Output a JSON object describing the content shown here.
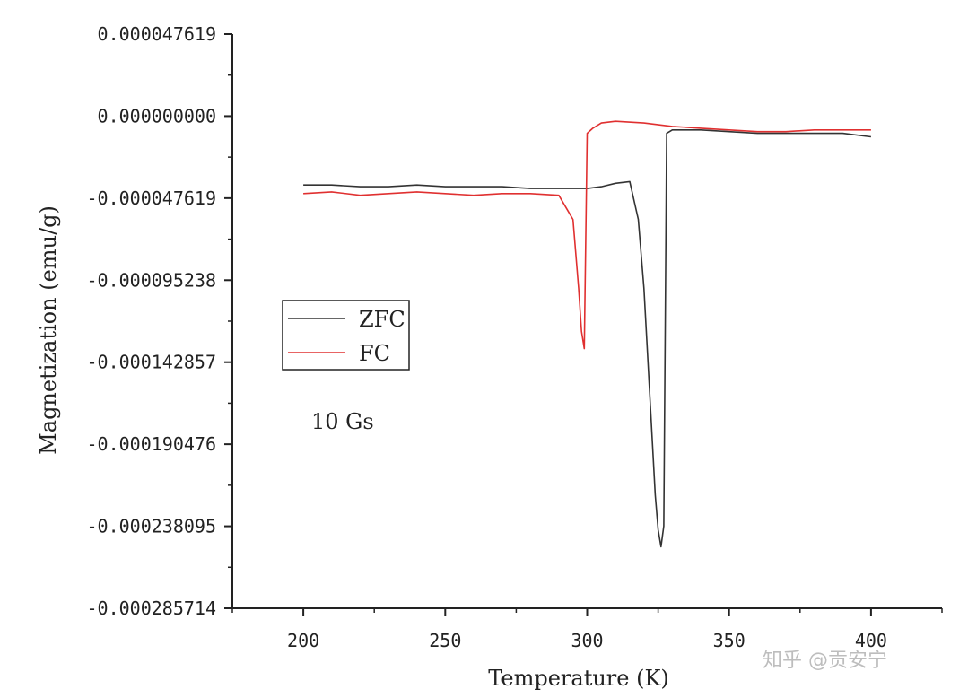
{
  "watermark": "知乎 @贡安宁",
  "chart_data": {
    "type": "line",
    "title": "",
    "xlabel": "Temperature (K)",
    "ylabel": "Magnetization (emu/g)",
    "xlim": [
      175,
      425
    ],
    "ylim": [
      -0.000285714,
      4.7619e-05
    ],
    "x_ticks": [
      200,
      250,
      300,
      350,
      400
    ],
    "x_tick_labels": [
      "200",
      "250",
      "300",
      "350",
      "400"
    ],
    "y_ticks": [
      4.7619e-05,
      0.0,
      -4.7619e-05,
      -9.5238e-05,
      -0.000142857,
      -0.000190476,
      -0.000238095,
      -0.000285714
    ],
    "y_tick_labels": [
      "0.000047619",
      "0.000000000",
      "-0.000047619",
      "-0.000095238",
      "-0.000142857",
      "-0.000190476",
      "-0.000238095",
      "-0.000285714"
    ],
    "grid": false,
    "legend": "middle-left",
    "annotation": "10 Gs",
    "series": [
      {
        "name": "ZFC",
        "color": "#333333",
        "x": [
          200,
          210,
          220,
          230,
          240,
          250,
          260,
          270,
          280,
          290,
          300,
          305,
          310,
          315,
          318,
          320,
          322,
          324,
          325,
          326,
          327,
          328,
          330,
          335,
          340,
          350,
          360,
          370,
          380,
          390,
          400
        ],
        "y": [
          -4e-05,
          -4e-05,
          -4.1e-05,
          -4.1e-05,
          -4e-05,
          -4.1e-05,
          -4.1e-05,
          -4.1e-05,
          -4.2e-05,
          -4.2e-05,
          -4.2e-05,
          -4.1e-05,
          -3.9e-05,
          -3.8e-05,
          -6e-05,
          -0.0001,
          -0.00016,
          -0.00022,
          -0.00024,
          -0.00025,
          -0.000238,
          -1e-05,
          -8e-06,
          -8e-06,
          -8e-06,
          -9e-06,
          -1e-05,
          -1e-05,
          -1e-05,
          -1e-05,
          -1.2e-05
        ]
      },
      {
        "name": "FC",
        "color": "#e03030",
        "x": [
          200,
          210,
          220,
          230,
          240,
          250,
          260,
          270,
          280,
          290,
          295,
          297,
          298,
          299,
          300,
          302,
          305,
          310,
          320,
          330,
          340,
          350,
          360,
          370,
          380,
          390,
          400
        ],
        "y": [
          -4.5e-05,
          -4.4e-05,
          -4.6e-05,
          -4.5e-05,
          -4.4e-05,
          -4.5e-05,
          -4.6e-05,
          -4.5e-05,
          -4.5e-05,
          -4.6e-05,
          -6e-05,
          -0.0001,
          -0.000125,
          -0.000135,
          -1e-05,
          -7e-06,
          -4e-06,
          -3e-06,
          -4e-06,
          -6e-06,
          -7e-06,
          -8e-06,
          -9e-06,
          -9e-06,
          -8e-06,
          -8e-06,
          -8e-06
        ]
      }
    ]
  }
}
